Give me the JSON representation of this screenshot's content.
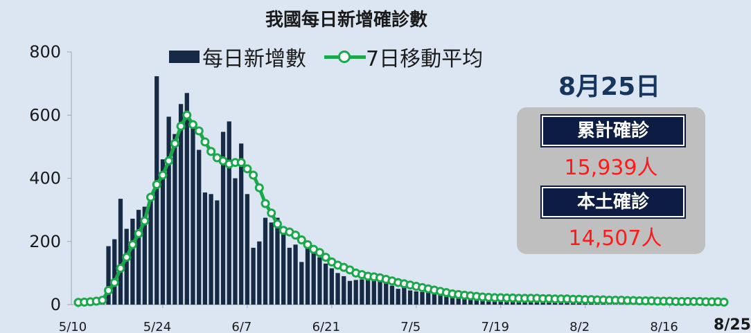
{
  "title": "我國每日新增確診數",
  "legend": {
    "bar": "每日新增數",
    "line": "7日移動平均"
  },
  "info": {
    "date": "8月25日",
    "cum_label": "累計確診",
    "cum_value": "15,939人",
    "local_label": "本土確診",
    "local_value": "14,507人"
  },
  "colors": {
    "bar": "#172a45",
    "line": "#1aa84b",
    "value": "#ff1a1a",
    "label_bg": "#0c1c42"
  },
  "chart_data": {
    "type": "bar",
    "title": "我國每日新增確診數",
    "ylim": [
      0,
      800
    ],
    "yticks": [
      0,
      200,
      400,
      600,
      800
    ],
    "xticks": [
      "5/10",
      "5/24",
      "6/7",
      "6/21",
      "7/5",
      "7/19",
      "8/2",
      "8/16"
    ],
    "last_label": "8/25",
    "grid": false,
    "legend_position": "top",
    "x_start": "5/10",
    "series": [
      {
        "name": "每日新增數",
        "kind": "bar",
        "values": [
          0,
          2,
          3,
          12,
          7,
          185,
          207,
          335,
          240,
          272,
          300,
          310,
          340,
          723,
          460,
          595,
          540,
          635,
          670,
          580,
          490,
          355,
          350,
          330,
          547,
          580,
          400,
          510,
          350,
          180,
          200,
          275,
          260,
          275,
          225,
          180,
          190,
          135,
          180,
          175,
          150,
          130,
          115,
          100,
          90,
          75,
          78,
          80,
          90,
          78,
          75,
          68,
          60,
          50,
          55,
          45,
          42,
          40,
          42,
          40,
          35,
          35,
          30,
          35,
          30,
          25,
          24,
          28,
          25,
          22,
          21,
          20,
          20,
          19,
          18,
          18,
          20,
          16,
          15,
          15,
          15,
          14,
          15,
          13,
          13,
          12,
          12,
          10,
          10,
          12,
          11,
          10,
          10,
          8,
          9,
          10,
          8,
          8,
          9,
          8,
          8,
          9,
          8,
          7,
          7,
          6,
          7,
          5
        ]
      },
      {
        "name": "7日移動平均",
        "kind": "line",
        "values": [
          7,
          8,
          9,
          11,
          14,
          45,
          70,
          115,
          150,
          190,
          225,
          265,
          340,
          380,
          410,
          455,
          510,
          565,
          600,
          570,
          550,
          515,
          485,
          465,
          455,
          445,
          450,
          450,
          430,
          410,
          370,
          320,
          290,
          255,
          235,
          230,
          220,
          205,
          190,
          175,
          165,
          150,
          135,
          125,
          118,
          110,
          100,
          95,
          90,
          88,
          85,
          80,
          75,
          70,
          66,
          62,
          58,
          54,
          50,
          46,
          42,
          38,
          34,
          32,
          30,
          28,
          26,
          24,
          23,
          22,
          22,
          21,
          21,
          20,
          20,
          20,
          20,
          19,
          19,
          18,
          18,
          18,
          17,
          17,
          16,
          16,
          15,
          15,
          14,
          14,
          14,
          13,
          13,
          12,
          12,
          12,
          11,
          11,
          11,
          10,
          10,
          10,
          10,
          10,
          9,
          9,
          9,
          8
        ]
      }
    ]
  }
}
